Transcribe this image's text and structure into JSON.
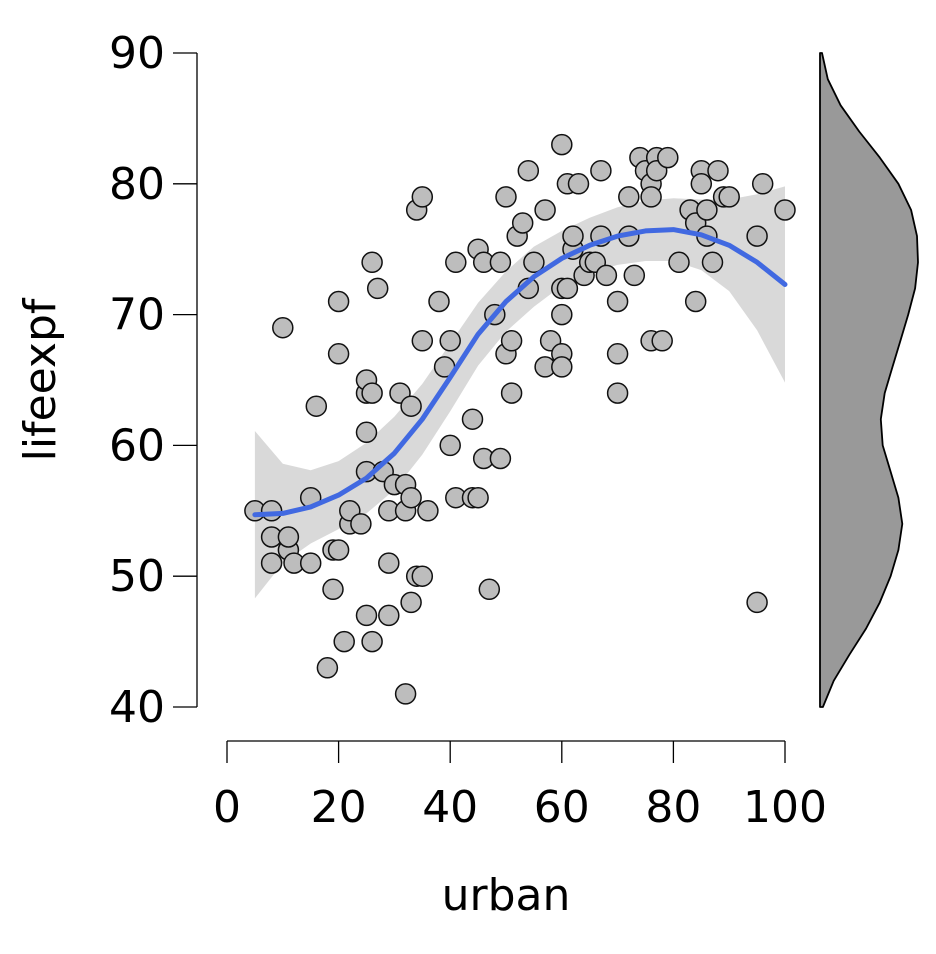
{
  "chart_data": {
    "type": "scatter",
    "xlabel": "urban",
    "ylabel": "lifeexpf",
    "xlim": [
      0,
      100
    ],
    "ylim": [
      40,
      90
    ],
    "xticks": [
      "0",
      "20",
      "40",
      "60",
      "80",
      "100"
    ],
    "yticks": [
      "40",
      "50",
      "60",
      "70",
      "80",
      "90"
    ],
    "grid": false,
    "colors": {
      "points": "#bdbdbd",
      "smooth": "#4169e1",
      "band": "#d9d9d9",
      "density": "#999999"
    },
    "points": [
      [
        5,
        55
      ],
      [
        8,
        55
      ],
      [
        8,
        53
      ],
      [
        8,
        51
      ],
      [
        10,
        69
      ],
      [
        11,
        52
      ],
      [
        11,
        53
      ],
      [
        12,
        51
      ],
      [
        15,
        51
      ],
      [
        15,
        56
      ],
      [
        16,
        63
      ],
      [
        18,
        43
      ],
      [
        19,
        49
      ],
      [
        19,
        52
      ],
      [
        20,
        52
      ],
      [
        20,
        71
      ],
      [
        20,
        67
      ],
      [
        21,
        45
      ],
      [
        22,
        54
      ],
      [
        22,
        55
      ],
      [
        24,
        54
      ],
      [
        25,
        64
      ],
      [
        25,
        65
      ],
      [
        25,
        61
      ],
      [
        25,
        58
      ],
      [
        25,
        47
      ],
      [
        26,
        64
      ],
      [
        26,
        74
      ],
      [
        26,
        45
      ],
      [
        27,
        72
      ],
      [
        28,
        58
      ],
      [
        29,
        55
      ],
      [
        29,
        51
      ],
      [
        29,
        47
      ],
      [
        30,
        57
      ],
      [
        31,
        64
      ],
      [
        32,
        57
      ],
      [
        32,
        55
      ],
      [
        32,
        41
      ],
      [
        33,
        63
      ],
      [
        33,
        56
      ],
      [
        33,
        48
      ],
      [
        34,
        78
      ],
      [
        34,
        50
      ],
      [
        35,
        79
      ],
      [
        35,
        68
      ],
      [
        35,
        50
      ],
      [
        36,
        55
      ],
      [
        38,
        71
      ],
      [
        39,
        66
      ],
      [
        40,
        68
      ],
      [
        40,
        60
      ],
      [
        41,
        74
      ],
      [
        41,
        56
      ],
      [
        44,
        56
      ],
      [
        44,
        62
      ],
      [
        45,
        56
      ],
      [
        45,
        75
      ],
      [
        46,
        74
      ],
      [
        46,
        59
      ],
      [
        47,
        49
      ],
      [
        48,
        70
      ],
      [
        49,
        74
      ],
      [
        49,
        59
      ],
      [
        50,
        79
      ],
      [
        50,
        67
      ],
      [
        51,
        64
      ],
      [
        51,
        68
      ],
      [
        52,
        76
      ],
      [
        53,
        77
      ],
      [
        54,
        81
      ],
      [
        54,
        72
      ],
      [
        55,
        74
      ],
      [
        57,
        78
      ],
      [
        57,
        66
      ],
      [
        58,
        68
      ],
      [
        60,
        83
      ],
      [
        60,
        72
      ],
      [
        60,
        70
      ],
      [
        60,
        67
      ],
      [
        60,
        66
      ],
      [
        61,
        80
      ],
      [
        61,
        72
      ],
      [
        62,
        75
      ],
      [
        62,
        76
      ],
      [
        63,
        80
      ],
      [
        64,
        73
      ],
      [
        65,
        74
      ],
      [
        66,
        74
      ],
      [
        67,
        81
      ],
      [
        67,
        76
      ],
      [
        68,
        73
      ],
      [
        70,
        67
      ],
      [
        70,
        64
      ],
      [
        70,
        71
      ],
      [
        72,
        79
      ],
      [
        72,
        76
      ],
      [
        73,
        73
      ],
      [
        74,
        82
      ],
      [
        75,
        81
      ],
      [
        76,
        80
      ],
      [
        76,
        79
      ],
      [
        76,
        68
      ],
      [
        77,
        82
      ],
      [
        77,
        81
      ],
      [
        78,
        68
      ],
      [
        79,
        82
      ],
      [
        81,
        74
      ],
      [
        83,
        78
      ],
      [
        84,
        77
      ],
      [
        84,
        71
      ],
      [
        85,
        81
      ],
      [
        85,
        80
      ],
      [
        86,
        78
      ],
      [
        86,
        76
      ],
      [
        87,
        74
      ],
      [
        88,
        81
      ],
      [
        89,
        79
      ],
      [
        90,
        79
      ],
      [
        95,
        76
      ],
      [
        95,
        48
      ],
      [
        96,
        80
      ],
      [
        100,
        78
      ]
    ],
    "smooth": {
      "x": [
        5,
        10,
        15,
        20,
        25,
        30,
        35,
        40,
        45,
        50,
        55,
        60,
        65,
        70,
        75,
        80,
        85,
        90,
        95,
        100
      ],
      "y": [
        54.7,
        54.8,
        55.3,
        56.2,
        57.5,
        59.4,
        62.0,
        65.2,
        68.5,
        71.0,
        72.9,
        74.3,
        75.3,
        76.0,
        76.4,
        76.5,
        76.1,
        75.3,
        74.0,
        72.3
      ],
      "lower": [
        48.3,
        51.0,
        52.5,
        53.6,
        54.8,
        56.6,
        59.3,
        62.6,
        66.1,
        68.7,
        70.6,
        72.2,
        73.2,
        73.8,
        74.1,
        74.1,
        73.4,
        71.8,
        68.8,
        64.8
      ],
      "upper": [
        61.1,
        58.6,
        58.1,
        58.8,
        60.2,
        62.2,
        64.7,
        67.8,
        70.9,
        73.3,
        75.2,
        76.4,
        77.4,
        78.2,
        78.7,
        78.9,
        78.8,
        78.8,
        79.2,
        79.8
      ]
    },
    "density": {
      "y": [
        40,
        42,
        44,
        46,
        48,
        50,
        52,
        54,
        56,
        58,
        60,
        62,
        64,
        66,
        68,
        70,
        72,
        74,
        76,
        78,
        80,
        82,
        84,
        86,
        88,
        90
      ],
      "d": [
        0.03,
        0.14,
        0.3,
        0.47,
        0.61,
        0.72,
        0.8,
        0.84,
        0.8,
        0.72,
        0.64,
        0.62,
        0.66,
        0.74,
        0.82,
        0.9,
        0.97,
        1.0,
        0.99,
        0.93,
        0.8,
        0.61,
        0.4,
        0.21,
        0.08,
        0.02
      ]
    }
  }
}
